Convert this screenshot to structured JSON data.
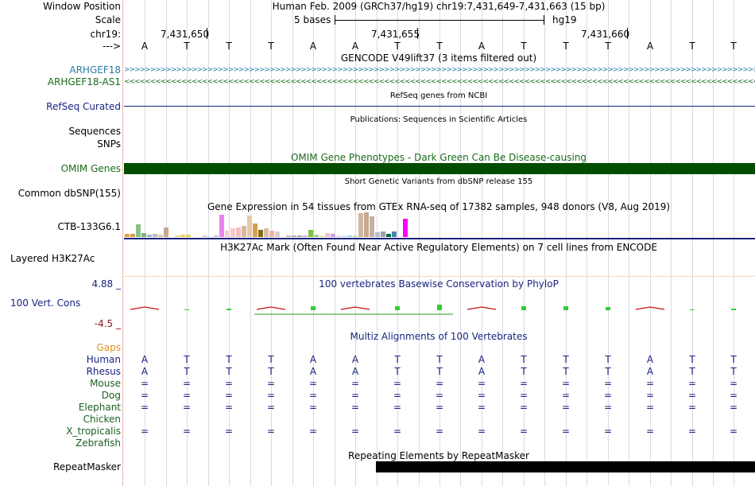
{
  "header": {
    "window_position_label": "Window Position",
    "window_position_text": "Human Feb. 2009 (GRCh37/hg19)    chr19:7,431,649-7,431,663 (15 bp)",
    "scale_label": "Scale",
    "scale_text": "5 bases",
    "scale_db": "hg19",
    "chrom_label": "chr19:",
    "positions": [
      "7,431,650",
      "7,431,655",
      "7,431,660"
    ],
    "strand_label": "--->"
  },
  "bases": [
    "A",
    "T",
    "T",
    "T",
    "A",
    "A",
    "T",
    "T",
    "A",
    "T",
    "T",
    "T",
    "A",
    "T",
    "T"
  ],
  "tracks": {
    "gencode_title": "GENCODE V49lift37 (3 items filtered out)",
    "gene1": "ARHGEF18",
    "gene1_color": "#2a7aa8",
    "gene2": "ARHGEF18-AS1",
    "gene2_color": "#1a6b1a",
    "refseq_label": "RefSeq Curated",
    "refseq_title": "RefSeq genes from NCBI",
    "pubs_title": "Publications: Sequences in Scientific Articles",
    "sequences_label": "Sequences",
    "snps_label": "SNPs",
    "omim_title": "OMIM Gene Phenotypes - Dark Green Can Be Disease-causing",
    "omim_label": "OMIM Genes",
    "omim_color": "#004d00",
    "dbsnp_title": "Short Genetic Variants from dbSNP release 155",
    "dbsnp_label": "Common dbSNP(155)",
    "gtex_title": "Gene Expression in 54 tissues from GTEx RNA-seq of 17382 samples, 948 donors (V8, Aug 2019)",
    "gtex_label": "CTB-133G6.1",
    "h3k27_title": "H3K27Ac Mark (Often Found Near Active Regulatory Elements) on 7 cell lines from ENCODE",
    "h3k27_label": "Layered H3K27Ac",
    "cons_max": "4.88 _",
    "cons_title": "100 vertebrates Basewise Conservation by PhyloP",
    "cons_label": "100 Vert. Cons",
    "cons_min": "-4.5 _",
    "multiz_title": "Multiz Alignments of 100 Vertebrates",
    "gaps_label": "Gaps",
    "repeat_title": "Repeating Elements by RepeatMasker",
    "repeat_label": "RepeatMasker"
  },
  "alignment": {
    "species": [
      {
        "name": "Human",
        "color": "#1a237e",
        "row": [
          "A",
          "T",
          "T",
          "T",
          "A",
          "A",
          "T",
          "T",
          "A",
          "T",
          "T",
          "T",
          "A",
          "T",
          "T"
        ]
      },
      {
        "name": "Rhesus",
        "color": "#1a237e",
        "row": [
          "A",
          "T",
          "T",
          "T",
          "A",
          "A",
          "T",
          "T",
          "A",
          "T",
          "T",
          "T",
          "A",
          "T",
          "T"
        ]
      },
      {
        "name": "Mouse",
        "color": "#1b5e20",
        "row": [
          "=",
          "=",
          "=",
          "=",
          "=",
          "=",
          "=",
          "=",
          "=",
          "=",
          "=",
          "=",
          "=",
          "=",
          "="
        ]
      },
      {
        "name": "Dog",
        "color": "#1b5e20",
        "row": [
          "=",
          "=",
          "=",
          "=",
          "=",
          "=",
          "=",
          "=",
          "=",
          "=",
          "=",
          "=",
          "=",
          "=",
          "="
        ]
      },
      {
        "name": "Elephant",
        "color": "#1b5e20",
        "row": [
          "=",
          "=",
          "=",
          "=",
          "=",
          "=",
          "=",
          "=",
          "=",
          "=",
          "=",
          "=",
          "=",
          "=",
          "="
        ]
      },
      {
        "name": "Chicken",
        "color": "#1b5e20",
        "row": [
          "",
          "",
          "",
          "",
          "",
          "",
          "",
          "",
          "",
          "",
          "",
          "",
          "",
          "",
          ""
        ]
      },
      {
        "name": "X_tropicalis",
        "color": "#1b5e20",
        "row": [
          "=",
          "=",
          "=",
          "=",
          "=",
          "=",
          "=",
          "=",
          "=",
          "=",
          "=",
          "=",
          "=",
          "=",
          "="
        ]
      },
      {
        "name": "Zebrafish",
        "color": "#1b5e20",
        "row": [
          "",
          "",
          "",
          "",
          "",
          "",
          "",
          "",
          "",
          "",
          "",
          "",
          "",
          "",
          ""
        ]
      }
    ]
  },
  "gtex_bars": [
    {
      "h": 4,
      "c": "#e6a03c"
    },
    {
      "h": 4,
      "c": "#c8a24a"
    },
    {
      "h": 16,
      "c": "#88c088"
    },
    {
      "h": 5,
      "c": "#7fb07f"
    },
    {
      "h": 3,
      "c": "#9fb0e0"
    },
    {
      "h": 4,
      "c": "#bcbcbc"
    },
    {
      "h": 3,
      "c": "#d8c8b0"
    },
    {
      "h": 12,
      "c": "#c8a890"
    },
    {
      "h": 0,
      "c": "#ffffff"
    },
    {
      "h": 2,
      "c": "#e0e080"
    },
    {
      "h": 3,
      "c": "#f0d060"
    },
    {
      "h": 3,
      "c": "#d8d860"
    },
    {
      "h": 0,
      "c": "#ffffff"
    },
    {
      "h": 0,
      "c": "#ffffff"
    },
    {
      "h": 2,
      "c": "#d0d0d0"
    },
    {
      "h": 0,
      "c": "#ffffff"
    },
    {
      "h": 2,
      "c": "#c8c8c8"
    },
    {
      "h": 28,
      "c": "#ee82ee"
    },
    {
      "h": 8,
      "c": "#f0d0d0"
    },
    {
      "h": 11,
      "c": "#f5c8c8"
    },
    {
      "h": 12,
      "c": "#f0c0c0"
    },
    {
      "h": 14,
      "c": "#d8b898"
    },
    {
      "h": 27,
      "c": "#e8c8a8"
    },
    {
      "h": 17,
      "c": "#d4a050"
    },
    {
      "h": 9,
      "c": "#8b6914"
    },
    {
      "h": 11,
      "c": "#d0c0b0"
    },
    {
      "h": 8,
      "c": "#f4b0a0"
    },
    {
      "h": 7,
      "c": "#d8d0d0"
    },
    {
      "h": 0,
      "c": "#ffffff"
    },
    {
      "h": 2,
      "c": "#c0c0c0"
    },
    {
      "h": 2,
      "c": "#b0b0b0"
    },
    {
      "h": 2,
      "c": "#a8a8a8"
    },
    {
      "h": 2,
      "c": "#d0b0f0"
    },
    {
      "h": 9,
      "c": "#80c040"
    },
    {
      "h": 3,
      "c": "#b0d0a0"
    },
    {
      "h": 2,
      "c": "#e8e8a0"
    },
    {
      "h": 5,
      "c": "#f0c0d0"
    },
    {
      "h": 4,
      "c": "#c8a0e0"
    },
    {
      "h": 2,
      "c": "#e0e0e0"
    },
    {
      "h": 2,
      "c": "#d0e8f0"
    },
    {
      "h": 2,
      "c": "#a8d8e8"
    },
    {
      "h": 2,
      "c": "#c0e0c0"
    },
    {
      "h": 30,
      "c": "#d0b8a0"
    },
    {
      "h": 31,
      "c": "#c8a890"
    },
    {
      "h": 26,
      "c": "#c8b0a0"
    },
    {
      "h": 6,
      "c": "#b0c0d0"
    },
    {
      "h": 7,
      "c": "#a0a0a0"
    },
    {
      "h": 4,
      "c": "#006b3c"
    },
    {
      "h": 7,
      "c": "#4488aa"
    },
    {
      "h": 0,
      "c": "#ffffff"
    },
    {
      "h": 23,
      "c": "#ff00ff"
    }
  ],
  "cons_values": [
    -0.6,
    0.1,
    0.2,
    -0.6,
    0.6,
    -0.6,
    0.6,
    0.9,
    -0.6,
    0.6,
    0.6,
    0.5,
    -0.6,
    0.1,
    0.3
  ]
}
